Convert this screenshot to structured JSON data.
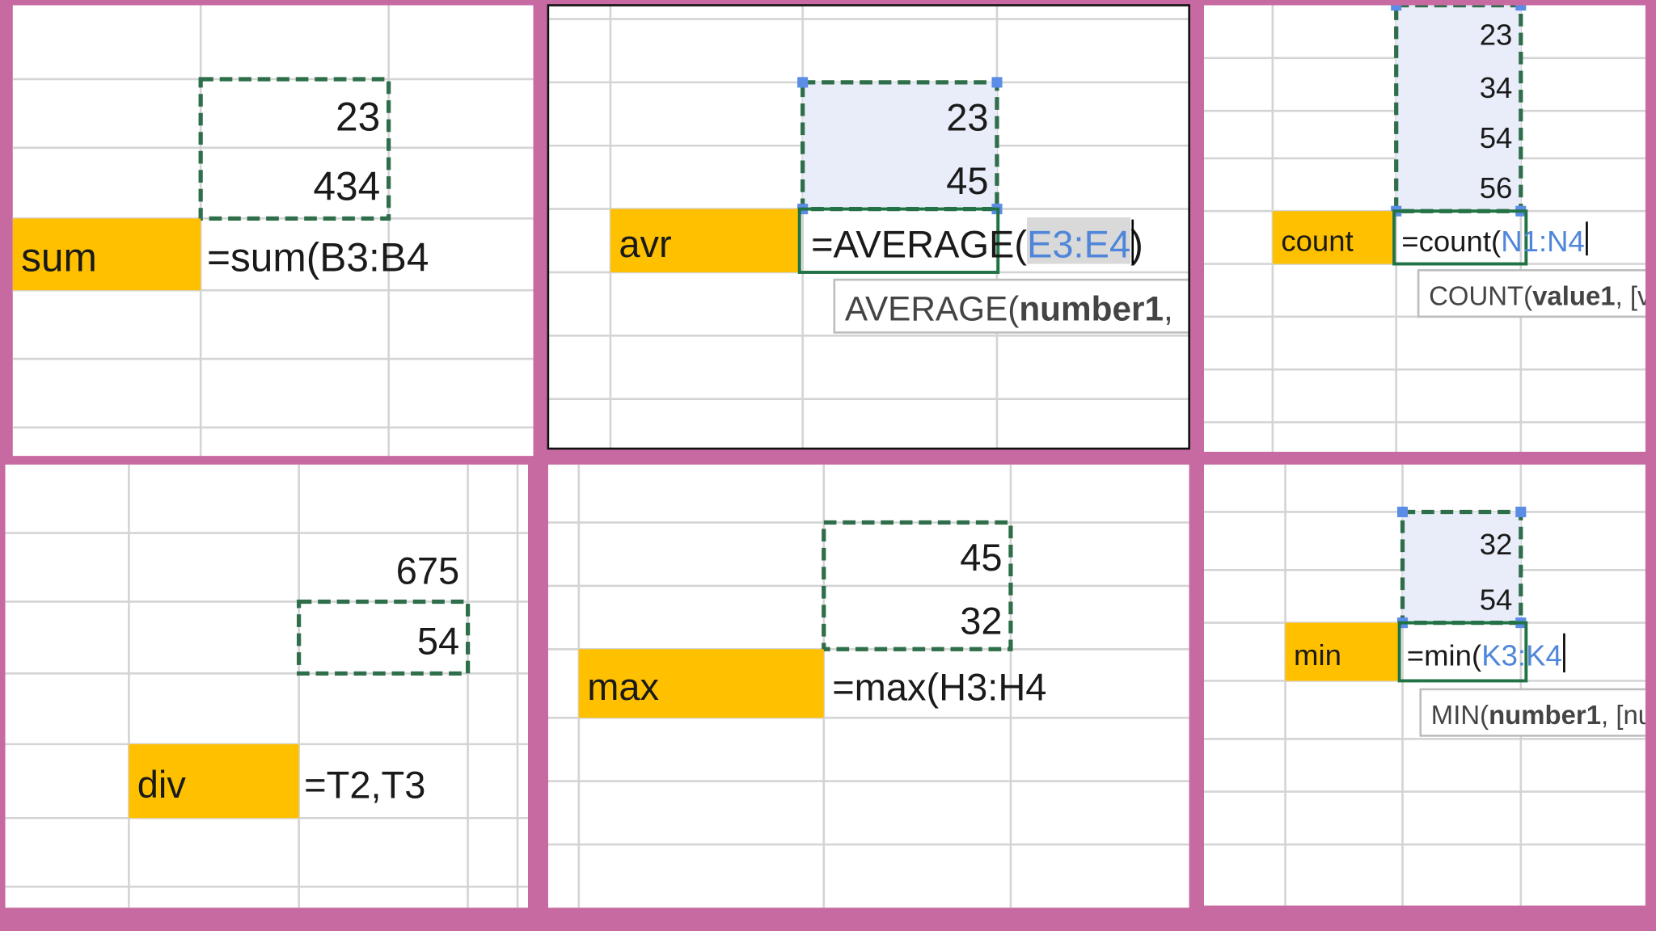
{
  "panels": [
    {
      "label": "sum",
      "formula": {
        "prefix": "=sum(B3:B4"
      },
      "cells": [
        23,
        434
      ]
    },
    {
      "label": "avr",
      "formula": {
        "prefix": "=AVERAGE(",
        "ref": "E3:E4",
        "suffix": ")"
      },
      "cells": [
        23,
        45
      ],
      "tooltip": {
        "prefix": "AVERAGE(",
        "bold": "number1",
        "suffix": ","
      }
    },
    {
      "label": "count",
      "formula": {
        "prefix": "=count(",
        "ref": "N1:N4"
      },
      "cells": [
        23,
        34,
        54,
        56
      ],
      "tooltip": {
        "prefix": "COUNT(",
        "bold": "value1",
        "suffix": ", [valu"
      }
    },
    {
      "label": "div",
      "formula": {
        "prefix": "=T2,T3"
      },
      "cells": [
        675,
        54
      ]
    },
    {
      "label": "max",
      "formula": {
        "prefix": "=max(H3:H4"
      },
      "cells": [
        45,
        32
      ]
    },
    {
      "label": "min",
      "formula": {
        "prefix": "=min(",
        "ref": "K3:K4"
      },
      "cells": [
        32,
        54
      ],
      "tooltip": {
        "prefix": "MIN(",
        "bold": "number1",
        "suffix": ", [num"
      }
    }
  ]
}
